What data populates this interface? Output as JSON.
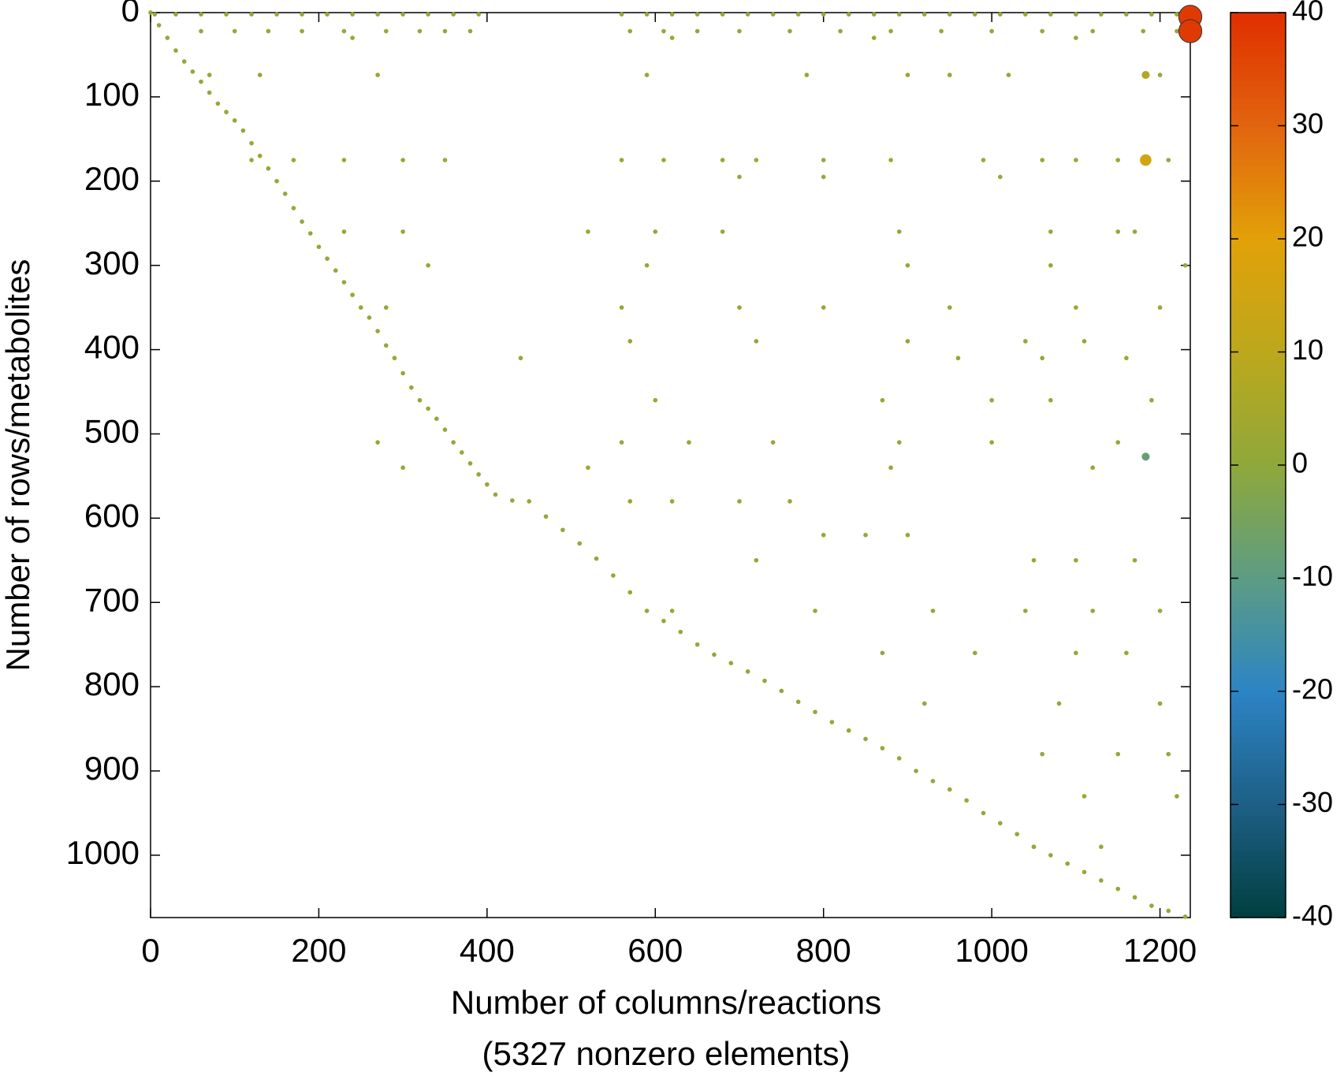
{
  "chart_data": {
    "type": "scatter",
    "xlabel": "Number of columns/reactions",
    "xlabel_note": "(5327 nonzero elements)",
    "ylabel": "Number of rows/metabolites",
    "xlim": [
      0,
      1236
    ],
    "ylim": [
      0,
      1074
    ],
    "y_reversed": true,
    "xticks": [
      0,
      200,
      400,
      600,
      800,
      1000,
      1200
    ],
    "yticks": [
      0,
      100,
      200,
      300,
      400,
      500,
      600,
      700,
      800,
      900,
      1000
    ],
    "colorbar": {
      "lim": [
        -40,
        40
      ],
      "ticks": [
        -40,
        -30,
        -20,
        -10,
        0,
        10,
        20,
        30,
        40
      ],
      "colormap": [
        {
          "value": -40,
          "color": "#003f3f"
        },
        {
          "value": -30,
          "color": "#1e5f86"
        },
        {
          "value": -20,
          "color": "#2c84c4"
        },
        {
          "value": -10,
          "color": "#5d9c84"
        },
        {
          "value": 0,
          "color": "#8fa83b"
        },
        {
          "value": 10,
          "color": "#bca81c"
        },
        {
          "value": 20,
          "color": "#e2a108"
        },
        {
          "value": 30,
          "color": "#e2640f"
        },
        {
          "value": 40,
          "color": "#e02f00"
        }
      ]
    },
    "points": [
      [
        0,
        0,
        1
      ],
      [
        10,
        15,
        1
      ],
      [
        20,
        30,
        1
      ],
      [
        30,
        45,
        1
      ],
      [
        40,
        58,
        1
      ],
      [
        50,
        70,
        1
      ],
      [
        60,
        82,
        1
      ],
      [
        70,
        95,
        1
      ],
      [
        80,
        108,
        1
      ],
      [
        90,
        118,
        1
      ],
      [
        100,
        128,
        1
      ],
      [
        110,
        140,
        1
      ],
      [
        120,
        155,
        1
      ],
      [
        130,
        170,
        1
      ],
      [
        140,
        185,
        1
      ],
      [
        150,
        200,
        1
      ],
      [
        160,
        215,
        1
      ],
      [
        170,
        232,
        1
      ],
      [
        180,
        248,
        1
      ],
      [
        190,
        262,
        1
      ],
      [
        200,
        278,
        1
      ],
      [
        210,
        292,
        1
      ],
      [
        220,
        306,
        1
      ],
      [
        230,
        320,
        1
      ],
      [
        240,
        335,
        1
      ],
      [
        250,
        350,
        1
      ],
      [
        260,
        362,
        1
      ],
      [
        270,
        378,
        1
      ],
      [
        280,
        395,
        1
      ],
      [
        290,
        410,
        1
      ],
      [
        300,
        428,
        1
      ],
      [
        310,
        445,
        1
      ],
      [
        320,
        460,
        1
      ],
      [
        330,
        470,
        1
      ],
      [
        340,
        482,
        1
      ],
      [
        350,
        495,
        1
      ],
      [
        360,
        510,
        1
      ],
      [
        370,
        522,
        1
      ],
      [
        380,
        535,
        1
      ],
      [
        390,
        548,
        1
      ],
      [
        400,
        560,
        1
      ],
      [
        410,
        572,
        1
      ],
      [
        430,
        579,
        1
      ],
      [
        450,
        580,
        1
      ],
      [
        470,
        598,
        1
      ],
      [
        490,
        614,
        1
      ],
      [
        510,
        630,
        1
      ],
      [
        530,
        648,
        1
      ],
      [
        550,
        668,
        1
      ],
      [
        570,
        688,
        1
      ],
      [
        590,
        710,
        1
      ],
      [
        610,
        722,
        1
      ],
      [
        630,
        735,
        1
      ],
      [
        650,
        750,
        1
      ],
      [
        670,
        762,
        1
      ],
      [
        690,
        772,
        1
      ],
      [
        710,
        782,
        1
      ],
      [
        730,
        793,
        1
      ],
      [
        750,
        805,
        1
      ],
      [
        770,
        818,
        1
      ],
      [
        790,
        830,
        1
      ],
      [
        810,
        842,
        1
      ],
      [
        830,
        852,
        1
      ],
      [
        850,
        862,
        1
      ],
      [
        870,
        873,
        1
      ],
      [
        890,
        885,
        1
      ],
      [
        910,
        900,
        1
      ],
      [
        930,
        912,
        1
      ],
      [
        950,
        922,
        1
      ],
      [
        970,
        935,
        1
      ],
      [
        990,
        950,
        1
      ],
      [
        1010,
        962,
        1
      ],
      [
        1030,
        975,
        1
      ],
      [
        1050,
        990,
        1
      ],
      [
        1070,
        1000,
        1
      ],
      [
        1090,
        1010,
        1
      ],
      [
        1110,
        1020,
        1
      ],
      [
        1130,
        1030,
        1
      ],
      [
        1150,
        1040,
        1
      ],
      [
        1170,
        1050,
        1
      ],
      [
        1190,
        1060,
        1
      ],
      [
        1210,
        1066,
        1
      ],
      [
        1230,
        1073,
        1
      ],
      [
        5,
        2,
        1
      ],
      [
        30,
        2,
        1
      ],
      [
        60,
        2,
        1
      ],
      [
        90,
        2,
        1
      ],
      [
        120,
        2,
        1
      ],
      [
        150,
        2,
        1
      ],
      [
        180,
        2,
        1
      ],
      [
        210,
        2,
        1
      ],
      [
        240,
        2,
        1
      ],
      [
        270,
        2,
        1
      ],
      [
        300,
        2,
        1
      ],
      [
        330,
        2,
        1
      ],
      [
        360,
        2,
        1
      ],
      [
        390,
        2,
        1
      ],
      [
        560,
        2,
        1
      ],
      [
        590,
        2,
        1
      ],
      [
        620,
        2,
        1
      ],
      [
        650,
        2,
        1
      ],
      [
        680,
        2,
        1
      ],
      [
        710,
        2,
        1
      ],
      [
        740,
        2,
        1
      ],
      [
        770,
        2,
        1
      ],
      [
        800,
        2,
        1
      ],
      [
        830,
        2,
        1
      ],
      [
        860,
        2,
        1
      ],
      [
        890,
        2,
        1
      ],
      [
        920,
        2,
        1
      ],
      [
        950,
        2,
        1
      ],
      [
        980,
        2,
        1
      ],
      [
        1010,
        2,
        1
      ],
      [
        1040,
        2,
        1
      ],
      [
        1070,
        2,
        1
      ],
      [
        1100,
        2,
        1
      ],
      [
        1130,
        2,
        1
      ],
      [
        1160,
        2,
        1
      ],
      [
        1190,
        2,
        1
      ],
      [
        1220,
        2,
        1
      ],
      [
        60,
        22,
        1
      ],
      [
        100,
        22,
        1
      ],
      [
        140,
        22,
        1
      ],
      [
        180,
        22,
        1
      ],
      [
        230,
        22,
        1
      ],
      [
        280,
        22,
        1
      ],
      [
        320,
        22,
        1
      ],
      [
        350,
        22,
        1
      ],
      [
        380,
        22,
        1
      ],
      [
        570,
        22,
        1
      ],
      [
        610,
        22,
        1
      ],
      [
        650,
        22,
        1
      ],
      [
        700,
        22,
        1
      ],
      [
        760,
        22,
        1
      ],
      [
        820,
        22,
        1
      ],
      [
        880,
        22,
        1
      ],
      [
        940,
        22,
        1
      ],
      [
        1000,
        22,
        1
      ],
      [
        1060,
        22,
        1
      ],
      [
        1120,
        22,
        1
      ],
      [
        1180,
        22,
        1
      ],
      [
        1220,
        22,
        1
      ],
      [
        240,
        30,
        1
      ],
      [
        620,
        30,
        1
      ],
      [
        860,
        30,
        1
      ],
      [
        1100,
        30,
        1
      ],
      [
        70,
        74,
        1
      ],
      [
        130,
        74,
        1
      ],
      [
        270,
        74,
        1
      ],
      [
        590,
        74,
        1
      ],
      [
        780,
        74,
        1
      ],
      [
        900,
        74,
        1
      ],
      [
        950,
        74,
        1
      ],
      [
        1020,
        74,
        1
      ],
      [
        1200,
        74,
        1
      ],
      [
        120,
        175,
        1
      ],
      [
        170,
        175,
        1
      ],
      [
        230,
        175,
        1
      ],
      [
        300,
        175,
        1
      ],
      [
        350,
        175,
        1
      ],
      [
        560,
        175,
        1
      ],
      [
        610,
        175,
        1
      ],
      [
        680,
        175,
        1
      ],
      [
        720,
        175,
        1
      ],
      [
        800,
        175,
        1
      ],
      [
        880,
        175,
        1
      ],
      [
        990,
        175,
        1
      ],
      [
        1060,
        175,
        1
      ],
      [
        1100,
        175,
        1
      ],
      [
        1150,
        175,
        1
      ],
      [
        1210,
        175,
        1
      ],
      [
        700,
        195,
        1
      ],
      [
        800,
        195,
        1
      ],
      [
        1010,
        195,
        1
      ],
      [
        230,
        260,
        1
      ],
      [
        300,
        260,
        1
      ],
      [
        520,
        260,
        1
      ],
      [
        600,
        260,
        1
      ],
      [
        680,
        260,
        1
      ],
      [
        890,
        260,
        1
      ],
      [
        1070,
        260,
        1
      ],
      [
        1150,
        260,
        1
      ],
      [
        1170,
        260,
        1
      ],
      [
        330,
        300,
        1
      ],
      [
        590,
        300,
        1
      ],
      [
        900,
        300,
        1
      ],
      [
        1070,
        300,
        1
      ],
      [
        1230,
        300,
        1
      ],
      [
        280,
        350,
        1
      ],
      [
        560,
        350,
        1
      ],
      [
        700,
        350,
        1
      ],
      [
        800,
        350,
        1
      ],
      [
        950,
        350,
        1
      ],
      [
        1100,
        350,
        1
      ],
      [
        1200,
        350,
        1
      ],
      [
        570,
        390,
        1
      ],
      [
        720,
        390,
        1
      ],
      [
        900,
        390,
        1
      ],
      [
        1040,
        390,
        1
      ],
      [
        1110,
        390,
        1
      ],
      [
        440,
        410,
        1
      ],
      [
        960,
        410,
        1
      ],
      [
        1060,
        410,
        1
      ],
      [
        1160,
        410,
        1
      ],
      [
        600,
        460,
        1
      ],
      [
        870,
        460,
        1
      ],
      [
        1000,
        460,
        1
      ],
      [
        1070,
        460,
        1
      ],
      [
        1190,
        460,
        1
      ],
      [
        270,
        510,
        1
      ],
      [
        560,
        510,
        1
      ],
      [
        640,
        510,
        1
      ],
      [
        740,
        510,
        1
      ],
      [
        890,
        510,
        1
      ],
      [
        1000,
        510,
        1
      ],
      [
        1150,
        510,
        1
      ],
      [
        300,
        540,
        1
      ],
      [
        520,
        540,
        1
      ],
      [
        880,
        540,
        1
      ],
      [
        1120,
        540,
        1
      ],
      [
        570,
        580,
        1
      ],
      [
        620,
        580,
        1
      ],
      [
        700,
        580,
        1
      ],
      [
        760,
        580,
        1
      ],
      [
        800,
        620,
        1
      ],
      [
        850,
        620,
        1
      ],
      [
        900,
        620,
        1
      ],
      [
        720,
        650,
        1
      ],
      [
        1050,
        650,
        1
      ],
      [
        1100,
        650,
        1
      ],
      [
        1170,
        650,
        1
      ],
      [
        620,
        710,
        1
      ],
      [
        790,
        710,
        1
      ],
      [
        930,
        710,
        1
      ],
      [
        1040,
        710,
        1
      ],
      [
        1120,
        710,
        1
      ],
      [
        1200,
        710,
        1
      ],
      [
        870,
        760,
        1
      ],
      [
        980,
        760,
        1
      ],
      [
        1100,
        760,
        1
      ],
      [
        1160,
        760,
        1
      ],
      [
        920,
        820,
        1
      ],
      [
        1080,
        820,
        1
      ],
      [
        1200,
        820,
        1
      ],
      [
        1060,
        880,
        1
      ],
      [
        1150,
        880,
        1
      ],
      [
        1210,
        880,
        1
      ],
      [
        1110,
        930,
        1
      ],
      [
        1220,
        930,
        1
      ],
      [
        1050,
        990,
        1
      ],
      [
        1130,
        990,
        1
      ],
      [
        1183,
        74,
        8
      ],
      [
        1183,
        175,
        15
      ],
      [
        1183,
        527,
        -8
      ],
      [
        1236,
        5,
        38
      ],
      [
        1236,
        22,
        38
      ]
    ]
  }
}
